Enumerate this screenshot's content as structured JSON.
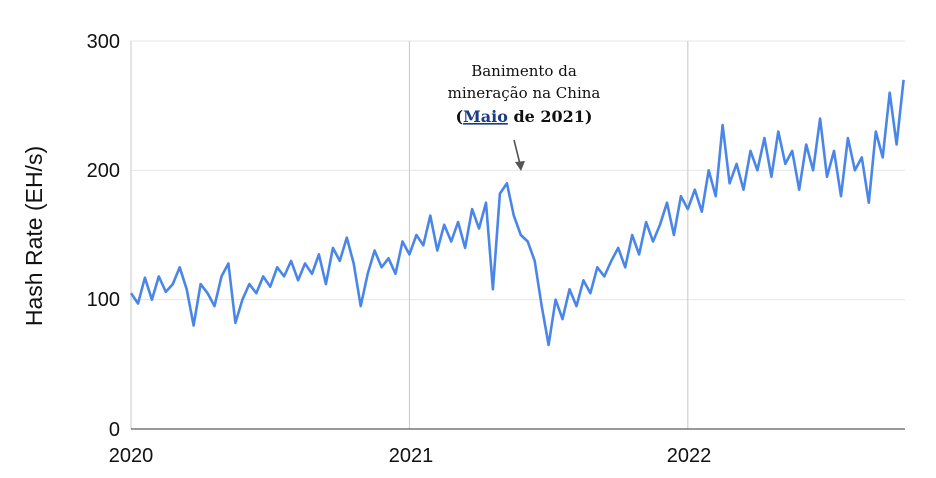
{
  "chart_data": {
    "type": "line",
    "title": "",
    "xlabel": "",
    "ylabel": "Hash Rate (EH/s)",
    "ylim": [
      0,
      300
    ],
    "xlim": [
      2020,
      2022.78
    ],
    "grid": true,
    "y_ticks": [
      "0",
      "100",
      "200",
      "300"
    ],
    "x_ticks": [
      "2020",
      "2021",
      "2022"
    ],
    "series": [
      {
        "name": "Hash Rate",
        "color": "#4a86e8",
        "x_start": 2020.0,
        "x_step": 0.025,
        "values": [
          105,
          97,
          117,
          100,
          118,
          106,
          112,
          125,
          108,
          80,
          112,
          105,
          95,
          118,
          128,
          82,
          100,
          112,
          105,
          118,
          110,
          125,
          118,
          130,
          115,
          128,
          120,
          135,
          112,
          140,
          130,
          148,
          128,
          95,
          120,
          138,
          125,
          132,
          120,
          145,
          135,
          150,
          142,
          165,
          138,
          158,
          145,
          160,
          140,
          170,
          155,
          175,
          108,
          182,
          190,
          165,
          150,
          145,
          130,
          95,
          65,
          100,
          85,
          108,
          95,
          115,
          105,
          125,
          118,
          130,
          140,
          125,
          150,
          135,
          160,
          145,
          158,
          175,
          150,
          180,
          170,
          185,
          168,
          200,
          180,
          235,
          190,
          205,
          185,
          215,
          200,
          225,
          195,
          230,
          205,
          215,
          185,
          220,
          200,
          240,
          195,
          215,
          180,
          225,
          200,
          210,
          175,
          230,
          210,
          260,
          220,
          270
        ]
      }
    ],
    "annotation": {
      "line1": "Banimento da",
      "line2": "mineração na China",
      "line3_open": "(",
      "line3_link": "Maio",
      "line3_rest": " de 2021)",
      "points_to_x": 2021.4
    }
  }
}
